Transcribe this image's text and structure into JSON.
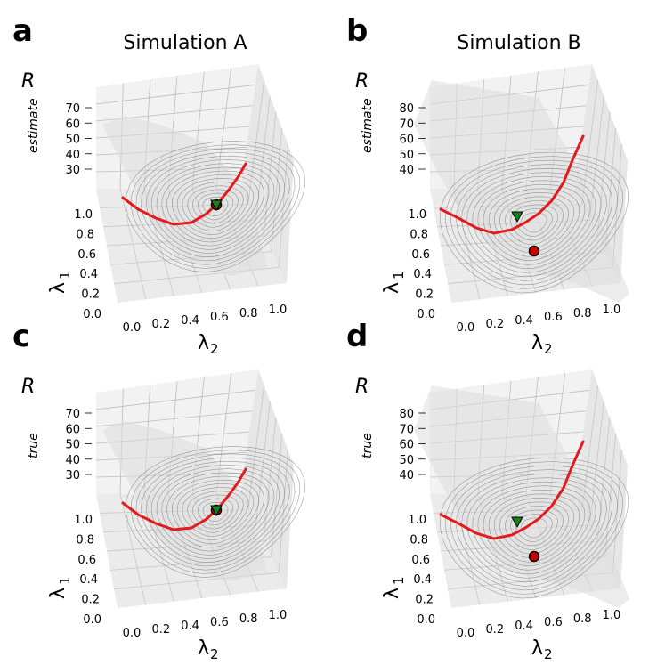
{
  "chart_data": [
    {
      "panel": "a",
      "type": "surface3d",
      "title": "Simulation A",
      "zlabel": "R",
      "zlabel_sub": "estimate",
      "xlabel": "λ",
      "xlabel_sub": "2",
      "ylabel": "λ",
      "ylabel_sub": "1",
      "zticks": [
        "30",
        "40",
        "50",
        "60",
        "70"
      ],
      "xticks": [
        "0.0",
        "0.2",
        "0.4",
        "0.6",
        "0.8",
        "1.0"
      ],
      "yticks": [
        "0.0",
        "0.2",
        "0.4",
        "0.6",
        "0.8",
        "1.0"
      ],
      "curve_color": "#e41a1c",
      "triangle_marker": {
        "color": "#1a7f1a",
        "lambda2": 0.55,
        "lambda1": 1.0
      },
      "circle_marker": {
        "color": "#cc0000",
        "lambda2": 0.55,
        "lambda1": 1.0
      }
    },
    {
      "panel": "b",
      "type": "surface3d",
      "title": "Simulation B",
      "zlabel": "R",
      "zlabel_sub": "estimate",
      "xlabel": "λ",
      "xlabel_sub": "2",
      "ylabel": "λ",
      "ylabel_sub": "1",
      "zticks": [
        "40",
        "50",
        "60",
        "70",
        "80"
      ],
      "xticks": [
        "0.0",
        "0.2",
        "0.4",
        "0.6",
        "0.8",
        "1.0"
      ],
      "yticks": [
        "0.0",
        "0.2",
        "0.4",
        "0.6",
        "0.8",
        "1.0"
      ],
      "curve_color": "#e41a1c",
      "triangle_marker": {
        "color": "#1a7f1a",
        "lambda2": 0.5,
        "lambda1": 1.0
      },
      "circle_marker": {
        "color": "#cc0000",
        "lambda2": 0.6,
        "lambda1": 0.6
      }
    },
    {
      "panel": "c",
      "type": "surface3d",
      "title": "",
      "zlabel": "R",
      "zlabel_sub": "true",
      "xlabel": "λ",
      "xlabel_sub": "2",
      "ylabel": "λ",
      "ylabel_sub": "1",
      "zticks": [
        "30",
        "40",
        "50",
        "60",
        "70"
      ],
      "xticks": [
        "0.0",
        "0.2",
        "0.4",
        "0.6",
        "0.8",
        "1.0"
      ],
      "yticks": [
        "0.0",
        "0.2",
        "0.4",
        "0.6",
        "0.8",
        "1.0"
      ],
      "curve_color": "#e41a1c",
      "triangle_marker": {
        "color": "#1a7f1a",
        "lambda2": 0.55,
        "lambda1": 1.0
      },
      "circle_marker": {
        "color": "#cc0000",
        "lambda2": 0.55,
        "lambda1": 1.0
      }
    },
    {
      "panel": "d",
      "type": "surface3d",
      "title": "",
      "zlabel": "R",
      "zlabel_sub": "true",
      "xlabel": "λ",
      "xlabel_sub": "2",
      "ylabel": "λ",
      "ylabel_sub": "1",
      "zticks": [
        "40",
        "50",
        "60",
        "70",
        "80"
      ],
      "xticks": [
        "0.0",
        "0.2",
        "0.4",
        "0.6",
        "0.8",
        "1.0"
      ],
      "yticks": [
        "0.0",
        "0.2",
        "0.4",
        "0.6",
        "0.8",
        "1.0"
      ],
      "curve_color": "#e41a1c",
      "triangle_marker": {
        "color": "#1a7f1a",
        "lambda2": 0.5,
        "lambda1": 1.0
      },
      "circle_marker": {
        "color": "#cc0000",
        "lambda2": 0.6,
        "lambda1": 0.6
      }
    }
  ]
}
